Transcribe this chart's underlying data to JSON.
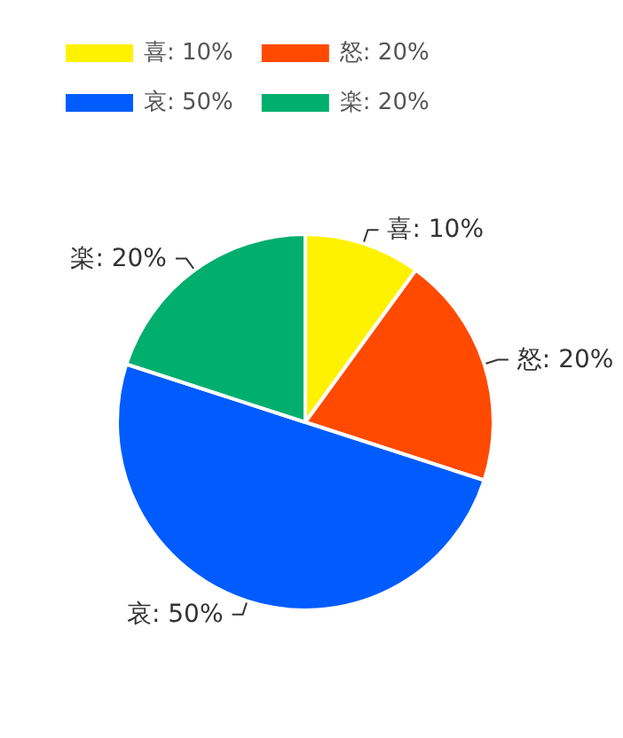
{
  "chart_data": {
    "type": "pie",
    "categories": [
      "喜: 10%",
      "怒: 20%",
      "哀: 50%",
      "楽: 20%"
    ],
    "values": [
      10,
      20,
      50,
      20
    ],
    "value_labels": [
      "喜: 10%",
      "怒: 20%",
      "哀: 50%",
      "楽: 20%"
    ],
    "colors": [
      "#fff200",
      "#ff4a00",
      "#005cff",
      "#00ae6e"
    ],
    "legend": "top left"
  }
}
